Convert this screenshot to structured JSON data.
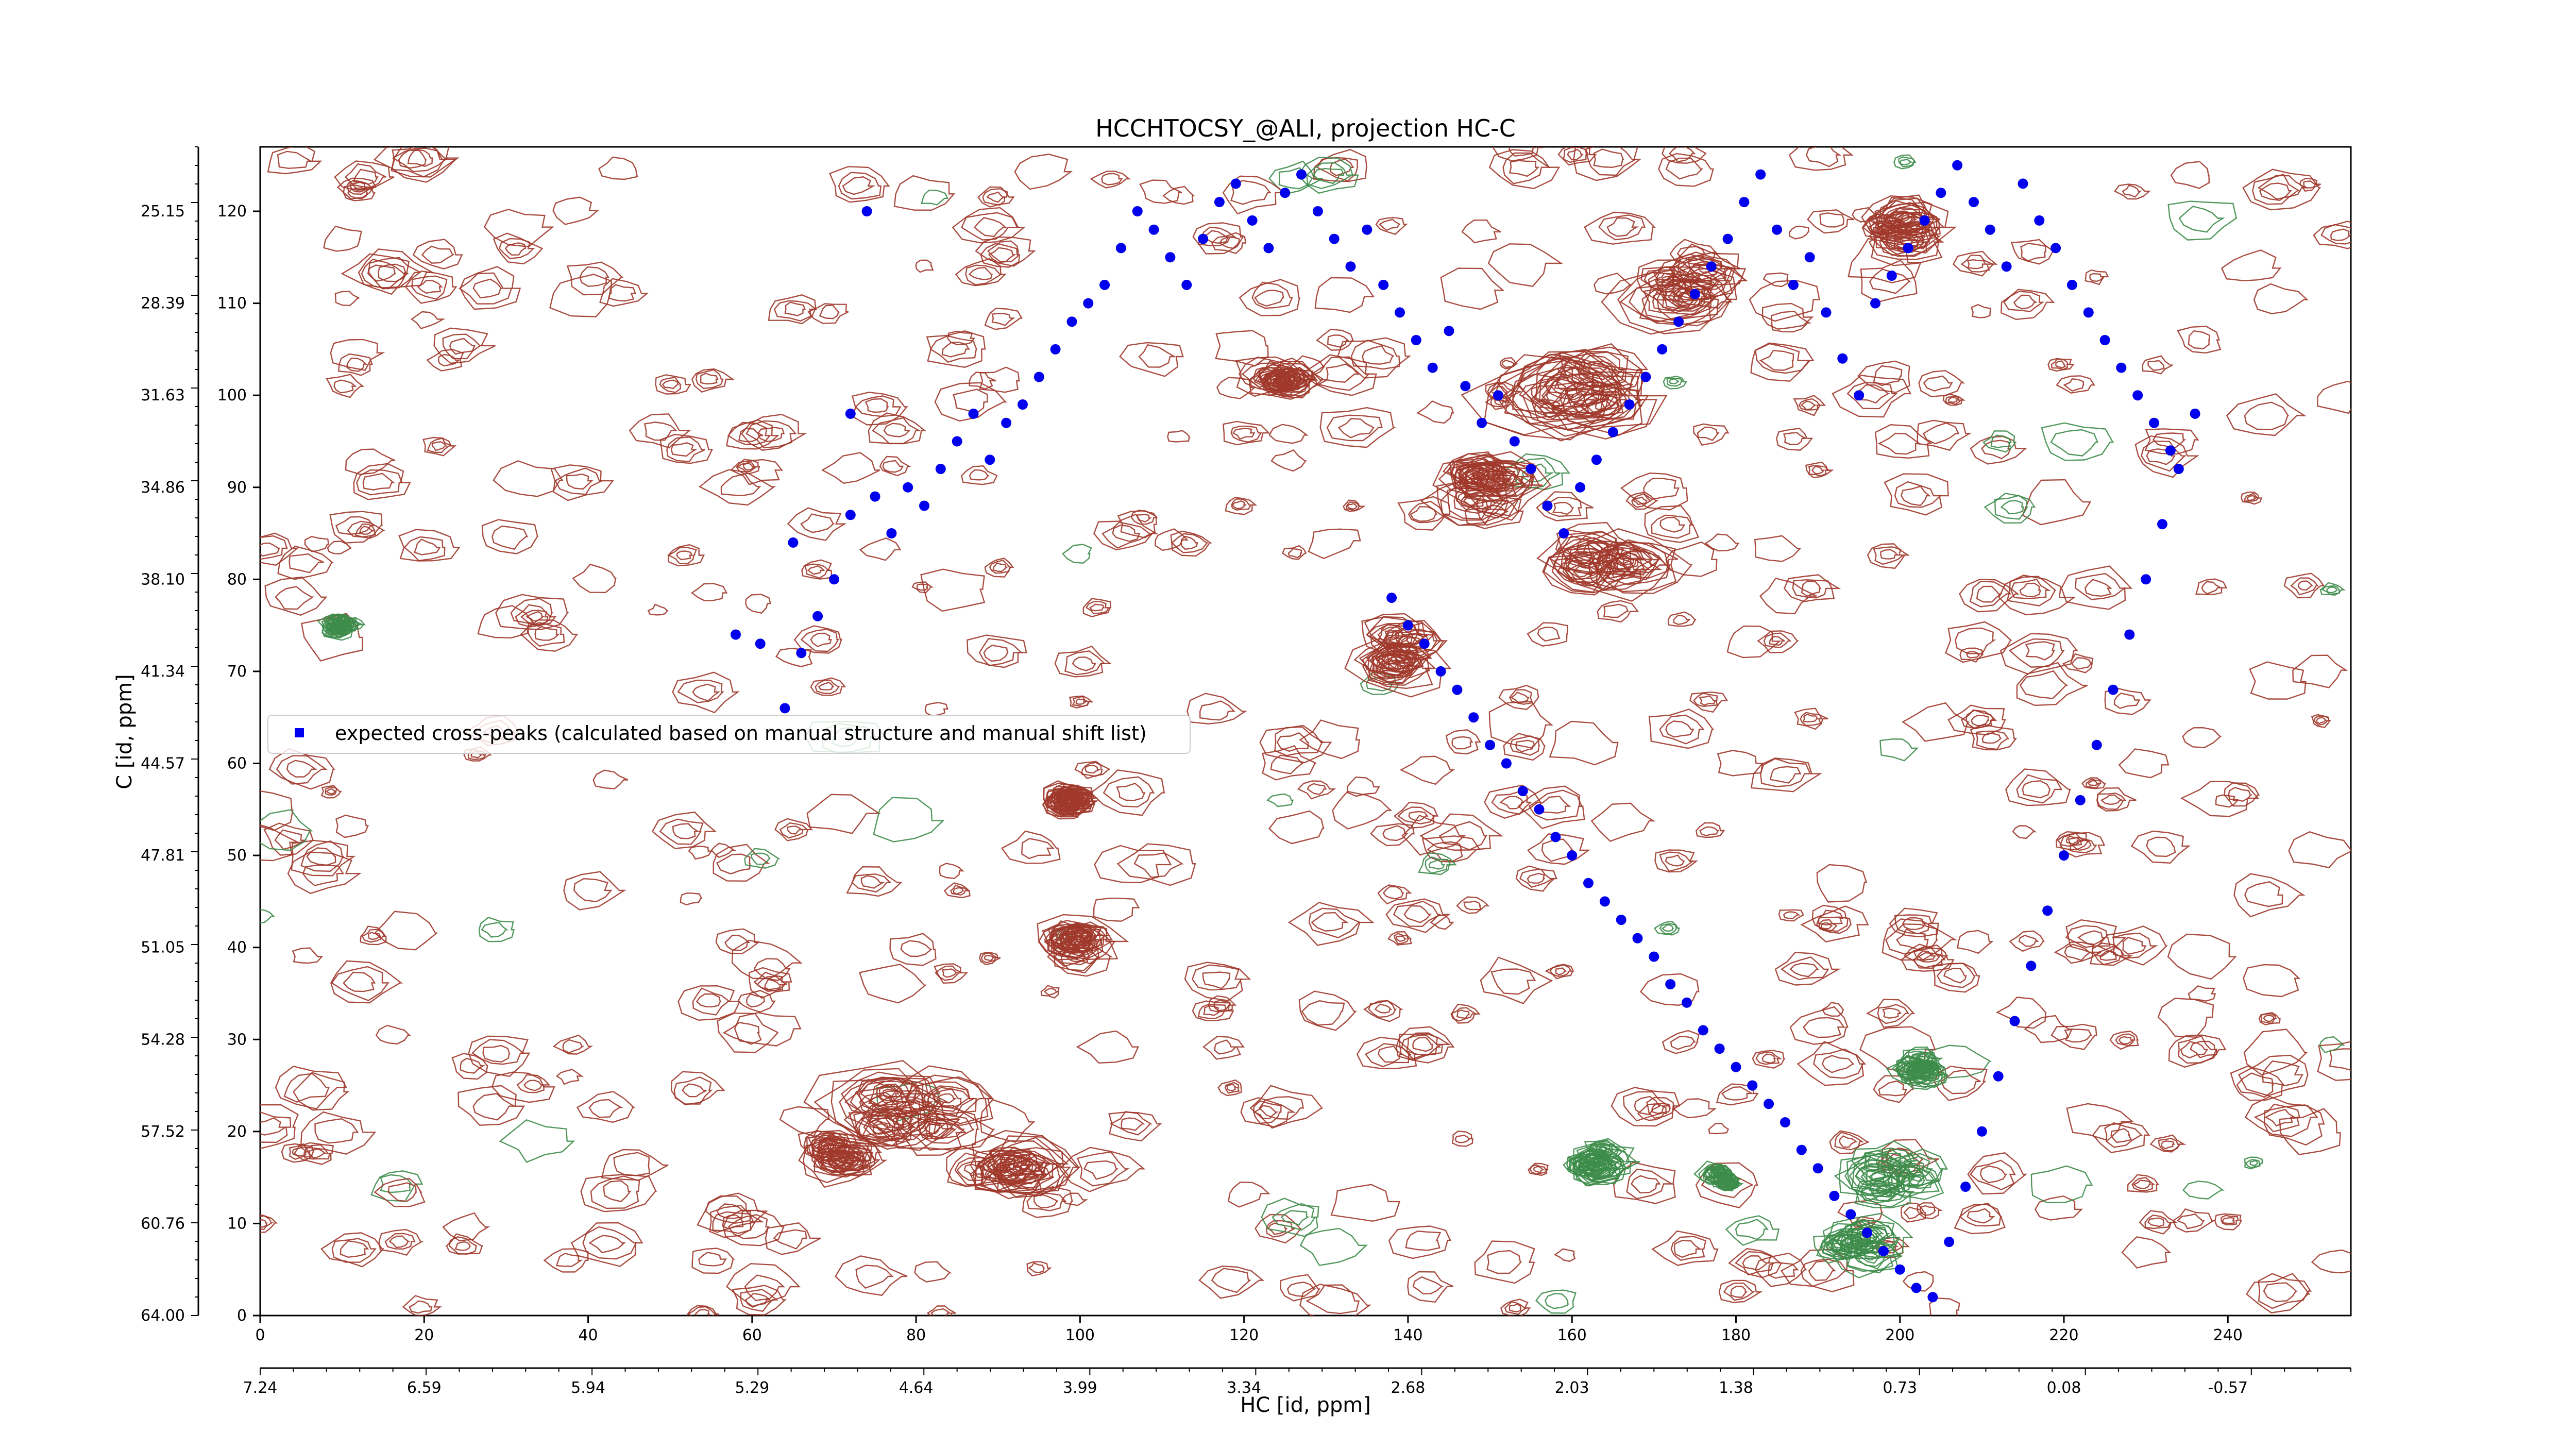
{
  "chart_data": {
    "type": "scatter",
    "title": "HCCHTOCSY_@ALI, projection HC-C",
    "xlabel": "HC [id, ppm]",
    "ylabel": "C [id, ppm]",
    "xlim": [
      0,
      255
    ],
    "ylim": [
      0,
      127
    ],
    "x_ticks": [
      "0",
      "20",
      "40",
      "60",
      "80",
      "100",
      "120",
      "140",
      "160",
      "180",
      "200",
      "220",
      "240"
    ],
    "x_ppm_ticks": [
      "7.24",
      "6.59",
      "5.94",
      "5.29",
      "4.64",
      "3.99",
      "3.34",
      "2.68",
      "2.03",
      "1.38",
      "0.73",
      "0.08",
      "-0.57"
    ],
    "y_ticks": [
      "0",
      "10",
      "20",
      "30",
      "40",
      "50",
      "60",
      "70",
      "80",
      "90",
      "100",
      "110",
      "120"
    ],
    "y_ppm_ticks": [
      "64.00",
      "60.76",
      "57.52",
      "54.28",
      "51.05",
      "47.81",
      "44.57",
      "41.34",
      "38.10",
      "34.86",
      "31.63",
      "28.39",
      "25.15"
    ],
    "legend": {
      "placement": "center-left",
      "entries": [
        "expected cross-peaks (calculated based on manual structure and manual shift list)"
      ]
    },
    "colors": {
      "positive_contour": "#a0392b",
      "negative_contour": "#3d8c4a",
      "marker": "#0000ee"
    },
    "series": [
      {
        "name": "expected cross-peaks (calculated based on manual structure and manual shift list)",
        "points": [
          [
            72,
            98
          ],
          [
            74,
            120
          ],
          [
            65,
            84
          ],
          [
            58,
            74
          ],
          [
            61,
            73
          ],
          [
            64,
            66
          ],
          [
            66,
            72
          ],
          [
            68,
            76
          ],
          [
            70,
            80
          ],
          [
            72,
            87
          ],
          [
            75,
            89
          ],
          [
            77,
            85
          ],
          [
            79,
            90
          ],
          [
            81,
            88
          ],
          [
            83,
            92
          ],
          [
            85,
            95
          ],
          [
            87,
            98
          ],
          [
            89,
            93
          ],
          [
            91,
            97
          ],
          [
            93,
            99
          ],
          [
            95,
            102
          ],
          [
            97,
            105
          ],
          [
            99,
            108
          ],
          [
            101,
            110
          ],
          [
            103,
            112
          ],
          [
            105,
            116
          ],
          [
            107,
            120
          ],
          [
            109,
            118
          ],
          [
            111,
            115
          ],
          [
            113,
            112
          ],
          [
            115,
            117
          ],
          [
            117,
            121
          ],
          [
            119,
            123
          ],
          [
            121,
            119
          ],
          [
            123,
            116
          ],
          [
            125,
            122
          ],
          [
            127,
            124
          ],
          [
            129,
            120
          ],
          [
            131,
            117
          ],
          [
            133,
            114
          ],
          [
            135,
            118
          ],
          [
            137,
            112
          ],
          [
            139,
            109
          ],
          [
            141,
            106
          ],
          [
            143,
            103
          ],
          [
            145,
            107
          ],
          [
            147,
            101
          ],
          [
            149,
            97
          ],
          [
            151,
            100
          ],
          [
            153,
            95
          ],
          [
            155,
            92
          ],
          [
            157,
            88
          ],
          [
            159,
            85
          ],
          [
            161,
            90
          ],
          [
            163,
            93
          ],
          [
            165,
            96
          ],
          [
            167,
            99
          ],
          [
            169,
            102
          ],
          [
            171,
            105
          ],
          [
            173,
            108
          ],
          [
            175,
            111
          ],
          [
            177,
            114
          ],
          [
            179,
            117
          ],
          [
            181,
            121
          ],
          [
            183,
            124
          ],
          [
            185,
            118
          ],
          [
            187,
            112
          ],
          [
            189,
            115
          ],
          [
            191,
            109
          ],
          [
            193,
            104
          ],
          [
            195,
            100
          ],
          [
            197,
            110
          ],
          [
            199,
            113
          ],
          [
            201,
            116
          ],
          [
            203,
            119
          ],
          [
            205,
            122
          ],
          [
            207,
            125
          ],
          [
            209,
            121
          ],
          [
            211,
            118
          ],
          [
            213,
            114
          ],
          [
            215,
            123
          ],
          [
            217,
            119
          ],
          [
            219,
            116
          ],
          [
            221,
            112
          ],
          [
            223,
            109
          ],
          [
            225,
            106
          ],
          [
            227,
            103
          ],
          [
            229,
            100
          ],
          [
            231,
            97
          ],
          [
            233,
            94
          ],
          [
            138,
            78
          ],
          [
            140,
            75
          ],
          [
            142,
            73
          ],
          [
            144,
            70
          ],
          [
            146,
            68
          ],
          [
            148,
            65
          ],
          [
            150,
            62
          ],
          [
            152,
            60
          ],
          [
            154,
            57
          ],
          [
            156,
            55
          ],
          [
            158,
            52
          ],
          [
            160,
            50
          ],
          [
            162,
            47
          ],
          [
            164,
            45
          ],
          [
            166,
            43
          ],
          [
            168,
            41
          ],
          [
            170,
            39
          ],
          [
            172,
            36
          ],
          [
            174,
            34
          ],
          [
            176,
            31
          ],
          [
            178,
            29
          ],
          [
            180,
            27
          ],
          [
            182,
            25
          ],
          [
            184,
            23
          ],
          [
            186,
            21
          ],
          [
            188,
            18
          ],
          [
            190,
            16
          ],
          [
            192,
            13
          ],
          [
            194,
            11
          ],
          [
            196,
            9
          ],
          [
            198,
            7
          ],
          [
            200,
            5
          ],
          [
            202,
            3
          ],
          [
            204,
            2
          ],
          [
            206,
            8
          ],
          [
            208,
            14
          ],
          [
            210,
            20
          ],
          [
            212,
            26
          ],
          [
            214,
            32
          ],
          [
            216,
            38
          ],
          [
            218,
            44
          ],
          [
            220,
            50
          ],
          [
            222,
            56
          ],
          [
            224,
            62
          ],
          [
            226,
            68
          ],
          [
            228,
            74
          ],
          [
            230,
            80
          ],
          [
            232,
            86
          ],
          [
            234,
            92
          ],
          [
            236,
            98
          ]
        ]
      }
    ]
  }
}
